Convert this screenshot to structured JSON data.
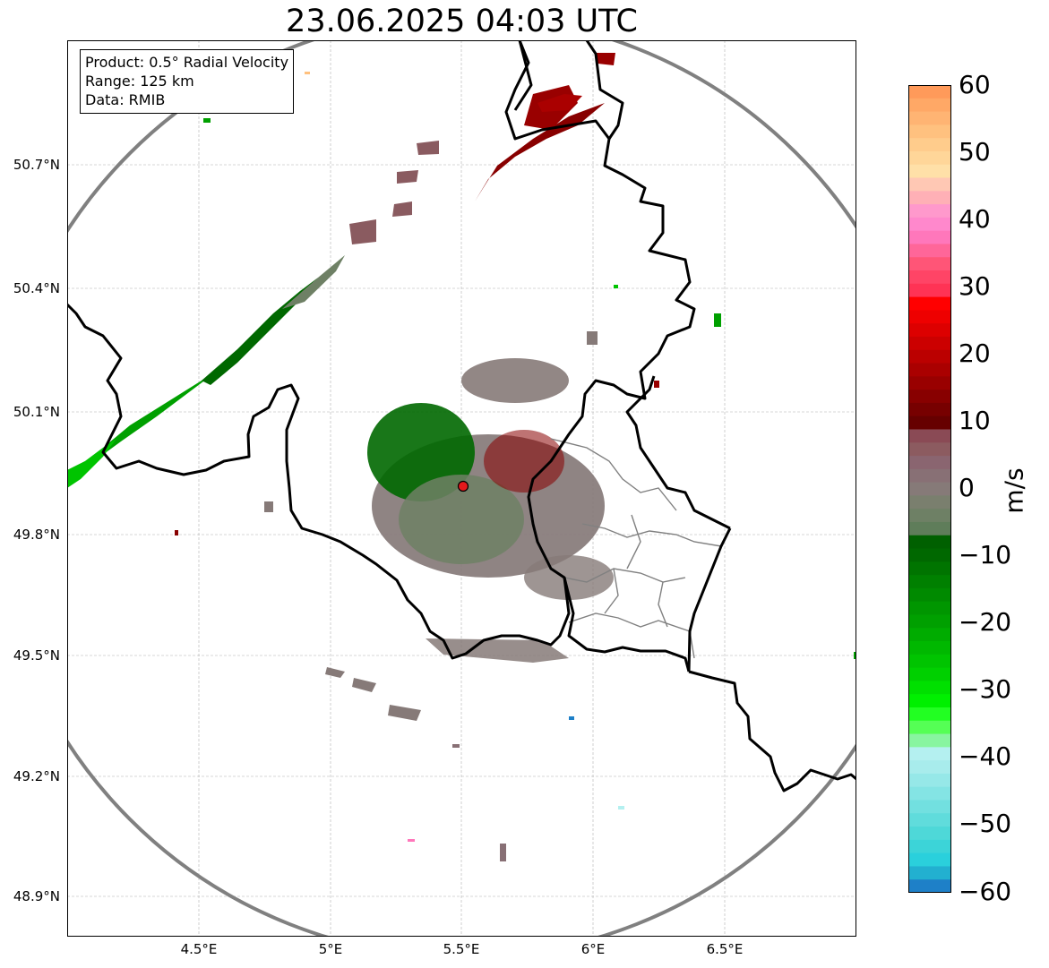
{
  "title": "23.06.2025 04:03 UTC",
  "info_box": {
    "product": "Product: 0.5° Radial Velocity",
    "range": "Range: 125 km",
    "source": "Data: RMIB"
  },
  "axes": {
    "lon_labels": [
      "4.5°E",
      "5°E",
      "5.5°E",
      "6°E",
      "6.5°E"
    ],
    "lon_values": [
      4.5,
      5.0,
      5.5,
      6.0,
      6.5
    ],
    "lat_labels": [
      "50.7°N",
      "50.4°N",
      "50.1°N",
      "49.8°N",
      "49.5°N",
      "49.2°N",
      "48.9°N"
    ],
    "lat_values": [
      50.7,
      50.4,
      50.1,
      49.8,
      49.5,
      49.2,
      48.9
    ],
    "lon_range": [
      4.0,
      7.0
    ],
    "lat_range": [
      48.8,
      51.0
    ],
    "grid": true
  },
  "radar": {
    "lon": 5.505,
    "lat": 49.915,
    "range_km": 125,
    "marker_color": "#e41a1c"
  },
  "colorbar": {
    "label": "m/s",
    "min": -60,
    "max": 60,
    "ticks": [
      "60",
      "50",
      "40",
      "30",
      "20",
      "10",
      "0",
      "−10",
      "−20",
      "−30",
      "−40",
      "−50",
      "−60"
    ],
    "colors_high_to_low": [
      "#ff9a5a",
      "#ffa866",
      "#ffb473",
      "#ffc17f",
      "#ffcc8c",
      "#ffd699",
      "#ffe0a8",
      "#ffc8b4",
      "#ffb0b6",
      "#ff99cc",
      "#ff88cc",
      "#ff77bb",
      "#ff6699",
      "#ff5577",
      "#ff4466",
      "#ff3355",
      "#ff0000",
      "#ee0000",
      "#dd0000",
      "#cc0000",
      "#bb0000",
      "#aa0000",
      "#990000",
      "#880000",
      "#770000",
      "#660000",
      "#8a4a55",
      "#8c5b60",
      "#8a6570",
      "#887075",
      "#867a78",
      "#7a7f6e",
      "#6e8065",
      "#5f7d5a",
      "#006000",
      "#006800",
      "#007400",
      "#008000",
      "#008a00",
      "#009600",
      "#00a000",
      "#00ac00",
      "#00b800",
      "#00c400",
      "#00d000",
      "#00e000",
      "#00f000",
      "#22ff22",
      "#55ff55",
      "#88f5a0",
      "#b4f0f0",
      "#a8ecec",
      "#96e8e8",
      "#84e4e4",
      "#72e0e0",
      "#60dcdc",
      "#4ed8d8",
      "#3cd4d8",
      "#2ad0dc",
      "#22b0d0",
      "#1e80c8"
    ]
  },
  "colors": {
    "border": "#000000",
    "admin_border": "#808080",
    "range_ring": "#808080",
    "grid": "#b0b0b0"
  }
}
